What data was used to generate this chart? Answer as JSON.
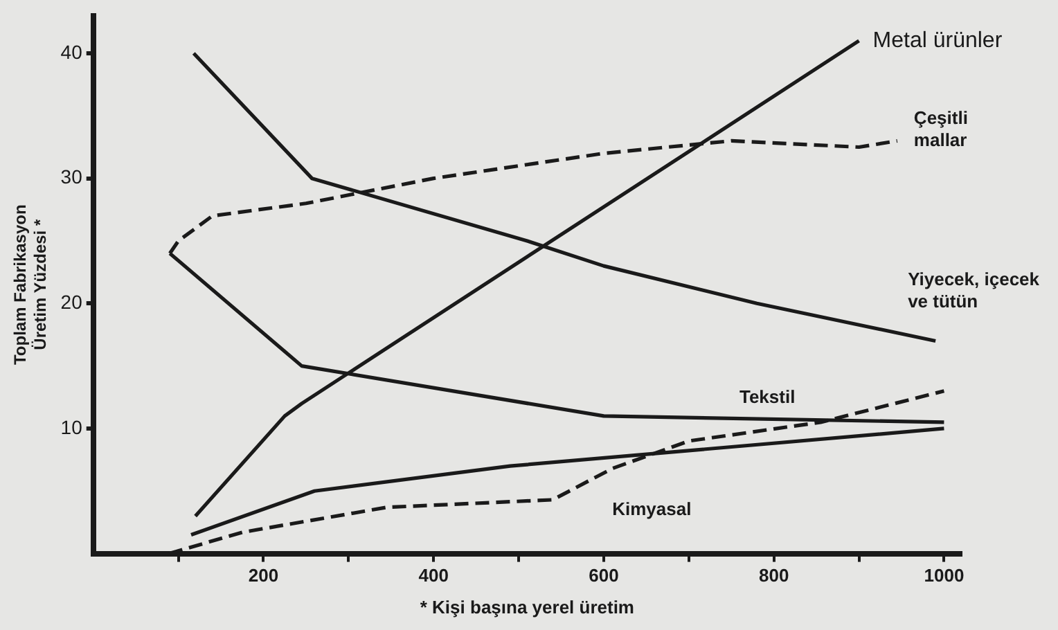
{
  "chart_data": {
    "type": "line",
    "xlabel": "* Kişi başına yerel üretim",
    "ylabel": "Toplam Fabrikasyon\nÜretim Yüzdesi *",
    "xlim": [
      0,
      1020
    ],
    "ylim": [
      0,
      43
    ],
    "xticks": [
      {
        "value": 100,
        "label": null
      },
      200,
      {
        "value": 300,
        "label": null
      },
      400,
      {
        "value": 500,
        "label": null
      },
      600,
      {
        "value": 700,
        "label": null
      },
      800,
      {
        "value": 900,
        "label": null
      },
      1000
    ],
    "yticks": [
      10,
      20,
      30,
      40
    ],
    "grid": false,
    "legend": false,
    "marker": "none",
    "series": [
      {
        "name": "Yiyecek, içecek\nve tütün",
        "color": "#1a1a1a",
        "line_style": "solid",
        "x": [
          118,
          257,
          510,
          600,
          780,
          990
        ],
        "values": [
          40,
          30,
          25,
          23,
          20,
          17
        ]
      },
      {
        "name": "Metal ürünler",
        "color": "#1a1a1a",
        "line_style": "solid",
        "x": [
          120,
          225,
          245,
          900
        ],
        "values": [
          3,
          11,
          12,
          41
        ]
      },
      {
        "name": "Çeşitli\nmallar",
        "color": "#1a1a1a",
        "line_style": "dashed",
        "x": [
          90,
          100,
          140,
          250,
          400,
          600,
          750,
          900,
          945
        ],
        "values": [
          24,
          25,
          27,
          28,
          30,
          32,
          33,
          32.5,
          33
        ]
      },
      {
        "name": "Tekstil",
        "color": "#1a1a1a",
        "line_style": "solid",
        "x": [
          90,
          245,
          600,
          1000
        ],
        "values": [
          24,
          15,
          11,
          10.5
        ]
      },
      {
        "color": "#1a1a1a",
        "line_style": "solid",
        "x": [
          115,
          260,
          490,
          1000
        ],
        "values": [
          1.5,
          5,
          7,
          10
        ]
      },
      {
        "name": "Kimyasal",
        "color": "#1a1a1a",
        "line_style": "dashed",
        "x": [
          89,
          175,
          345,
          540,
          610,
          700,
          855,
          1000
        ],
        "values": [
          0,
          1.7,
          3.7,
          4.3,
          6.8,
          9,
          10.5,
          13
        ]
      }
    ]
  }
}
